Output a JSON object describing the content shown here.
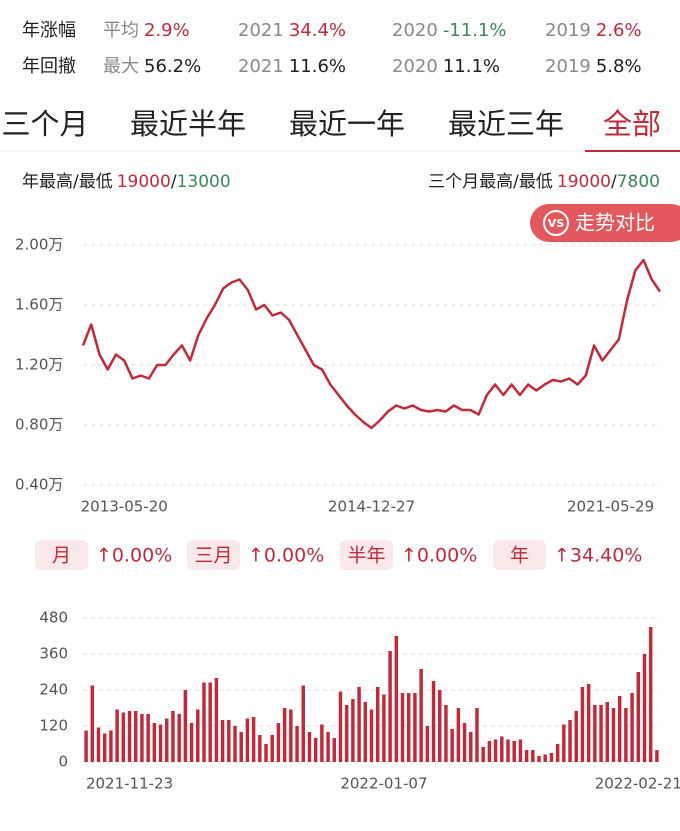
{
  "stats": {
    "rows": [
      {
        "label": "年涨幅",
        "items": [
          {
            "key": "平均",
            "value": "2.9%",
            "tone": "up"
          },
          {
            "key": "2021",
            "value": "34.4%",
            "tone": "up"
          },
          {
            "key": "2020",
            "value": "-11.1%",
            "tone": "down"
          },
          {
            "key": "2019",
            "value": "2.6%",
            "tone": "up"
          }
        ]
      },
      {
        "label": "年回撤",
        "items": [
          {
            "key": "最大",
            "value": "56.2%",
            "tone": "plain"
          },
          {
            "key": "2021",
            "value": "11.6%",
            "tone": "plain"
          },
          {
            "key": "2020",
            "value": "11.1%",
            "tone": "plain"
          },
          {
            "key": "2019",
            "value": "5.8%",
            "tone": "plain"
          }
        ]
      }
    ]
  },
  "tabs": {
    "items": [
      "三个月",
      "最近半年",
      "最近一年",
      "最近三年",
      "全部"
    ],
    "active": 4
  },
  "high_low": {
    "separator": "/",
    "left": {
      "label": "年最高/最低",
      "high": "19000",
      "low": "13000"
    },
    "right": {
      "label": "三个月最高/最低",
      "high": "19000",
      "low": "7800"
    }
  },
  "vs_button": {
    "icon": "VS",
    "label": "走势对比"
  },
  "periods": [
    {
      "label": "月",
      "change": "↑0.00%"
    },
    {
      "label": "三月",
      "change": "↑0.00%"
    },
    {
      "label": "半年",
      "change": "↑0.00%"
    },
    {
      "label": "年",
      "change": "↑34.40%"
    }
  ],
  "chart_data": [
    {
      "type": "line",
      "color": "#c22a3a",
      "grid": true,
      "ylim": [
        0.4,
        2
      ],
      "yticks": [
        {
          "value": 2,
          "label": "2.00万"
        },
        {
          "value": 1.6,
          "label": "1.60万"
        },
        {
          "value": 1.2,
          "label": "1.20万"
        },
        {
          "value": 0.8,
          "label": "0.80万"
        },
        {
          "value": 0.4,
          "label": "0.40万"
        }
      ],
      "categories": [
        null,
        null,
        null,
        null,
        null,
        "2013-05-20",
        null,
        null,
        null,
        null,
        null,
        null,
        null,
        null,
        null,
        null,
        null,
        null,
        null,
        null,
        null,
        null,
        null,
        null,
        null,
        null,
        null,
        null,
        null,
        null,
        null,
        null,
        null,
        null,
        null,
        "2014-12-27",
        null,
        null,
        null,
        null,
        null,
        null,
        null,
        null,
        null,
        null,
        null,
        null,
        null,
        null,
        null,
        null,
        null,
        null,
        null,
        null,
        null,
        null,
        null,
        null,
        null,
        null,
        null,
        null,
        "2021-05-29",
        null,
        null,
        null,
        null,
        null,
        null
      ],
      "values": [
        1.33,
        1.47,
        1.27,
        1.17,
        1.27,
        1.23,
        1.11,
        1.13,
        1.11,
        1.2,
        1.2,
        1.27,
        1.33,
        1.23,
        1.4,
        1.51,
        1.6,
        1.71,
        1.75,
        1.77,
        1.7,
        1.57,
        1.6,
        1.53,
        1.55,
        1.5,
        1.4,
        1.3,
        1.2,
        1.17,
        1.07,
        1,
        0.93,
        0.87,
        0.82,
        0.78,
        0.83,
        0.89,
        0.93,
        0.91,
        0.93,
        0.9,
        0.89,
        0.9,
        0.89,
        0.93,
        0.9,
        0.9,
        0.87,
        1,
        1.07,
        1,
        1.07,
        1,
        1.07,
        1.03,
        1.07,
        1.1,
        1.09,
        1.11,
        1.07,
        1.13,
        1.33,
        1.23,
        1.3,
        1.37,
        1.63,
        1.83,
        1.9,
        1.77,
        1.69
      ]
    },
    {
      "type": "bar",
      "color": "#c22a3a",
      "grid": true,
      "ylim": [
        0,
        480
      ],
      "yticks": [
        0,
        120,
        240,
        360,
        480
      ],
      "categories": [
        null,
        null,
        null,
        null,
        null,
        null,
        null,
        "2021-11-23",
        null,
        null,
        null,
        null,
        null,
        null,
        null,
        null,
        null,
        null,
        null,
        null,
        null,
        null,
        null,
        null,
        null,
        null,
        null,
        null,
        null,
        null,
        null,
        null,
        null,
        null,
        null,
        null,
        null,
        null,
        null,
        null,
        null,
        null,
        null,
        null,
        null,
        null,
        null,
        null,
        "2022-01-07",
        null,
        null,
        null,
        null,
        null,
        null,
        null,
        null,
        null,
        null,
        null,
        null,
        null,
        null,
        null,
        null,
        null,
        null,
        null,
        null,
        null,
        null,
        null,
        null,
        null,
        null,
        null,
        null,
        null,
        null,
        null,
        null,
        null,
        null,
        null,
        null,
        null,
        null,
        null,
        null,
        "2022-02-21",
        null,
        null,
        null
      ],
      "values": [
        105,
        255,
        115,
        95,
        105,
        175,
        165,
        170,
        170,
        160,
        160,
        130,
        125,
        145,
        170,
        160,
        240,
        130,
        175,
        265,
        265,
        280,
        140,
        140,
        120,
        100,
        145,
        150,
        90,
        60,
        90,
        130,
        180,
        175,
        120,
        255,
        100,
        80,
        125,
        100,
        80,
        235,
        190,
        210,
        250,
        200,
        175,
        250,
        225,
        370,
        420,
        230,
        230,
        230,
        310,
        120,
        270,
        240,
        190,
        110,
        180,
        130,
        100,
        180,
        50,
        70,
        75,
        85,
        75,
        70,
        75,
        40,
        40,
        20,
        25,
        30,
        60,
        125,
        140,
        170,
        250,
        260,
        190,
        190,
        200,
        180,
        220,
        180,
        230,
        300,
        360,
        450,
        40
      ]
    }
  ]
}
